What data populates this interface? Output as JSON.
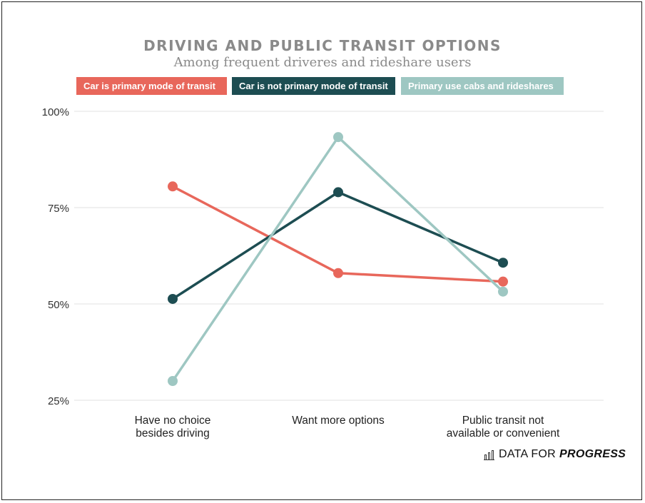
{
  "chart_data": {
    "type": "line",
    "title": "DRIVING AND PUBLIC TRANSIT OPTIONS",
    "subtitle": "Among frequent driveres and rideshare users",
    "categories": [
      "Have no choice besides driving",
      "Want more options",
      "Public transit not available or convenient"
    ],
    "category_lines": [
      [
        "Have no choice",
        "besides driving"
      ],
      [
        "Want more options"
      ],
      [
        "Public transit not",
        "available or convenient"
      ]
    ],
    "series": [
      {
        "name": "Car is primary mode of transit",
        "color": "#e8675b",
        "values": [
          80.5,
          58,
          55.8
        ]
      },
      {
        "name": "Car is not primary mode of transit",
        "color": "#1d4d52",
        "values": [
          51.3,
          79,
          60.7
        ]
      },
      {
        "name": "Primary use cabs and rideshares",
        "color": "#9ec7c2",
        "values": [
          30,
          93.3,
          53.2
        ]
      }
    ],
    "ylim": [
      25,
      100
    ],
    "yticks": [
      25,
      50,
      75,
      100
    ],
    "ytick_labels": [
      "25%",
      "50%",
      "75%",
      "100%"
    ],
    "grid": true,
    "legend_position": "top"
  },
  "brand": {
    "prefix": "DATA FOR",
    "name": "PROGRESS"
  }
}
